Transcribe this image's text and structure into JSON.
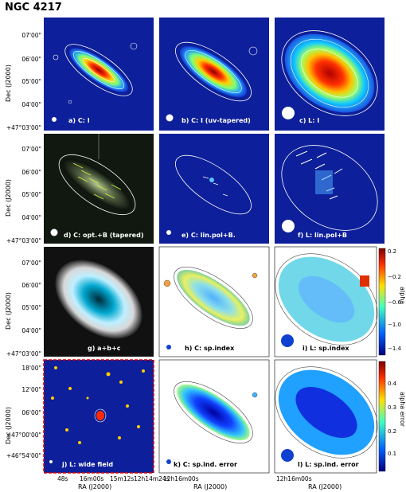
{
  "figure": {
    "title": "NGC 4217",
    "panels": [
      {
        "id": "a",
        "label": "a) C: I"
      },
      {
        "id": "b",
        "label": "b) C: I (uv-tapered)"
      },
      {
        "id": "c",
        "label": "c) L: I"
      },
      {
        "id": "d",
        "label": "d) C: opt.+B (tapered)"
      },
      {
        "id": "e",
        "label": "e) C: lin.pol+B."
      },
      {
        "id": "f",
        "label": "f) L: lin.pol+B"
      },
      {
        "id": "g",
        "label": "g) a+b+c"
      },
      {
        "id": "h",
        "label": "h) C: sp.index"
      },
      {
        "id": "i",
        "label": "i) L: sp.index"
      },
      {
        "id": "j",
        "label": "j) L: wide field"
      },
      {
        "id": "k",
        "label": "k) C: sp.ind. error"
      },
      {
        "id": "l",
        "label": "l) L: sp.ind. error"
      }
    ],
    "ylabel": "Dec (J2000)",
    "xlabel": "RA (J2000)",
    "dec_ticks": [
      "07'00\"",
      "06'00\"",
      "05'00\"",
      "04'00\"",
      "+47°03'00\""
    ],
    "dec_ticks_wide": [
      "18'00\"",
      "12'00\"",
      "06'00\"",
      "+47°00'00\"",
      "+46°54'00\""
    ],
    "ra_ticks_left": [
      "48s",
      "16m00s",
      "15m12s",
      "12h14m24s"
    ],
    "ra_ticks_mid": "12h16m00s",
    "ra_ticks_right": "12h16m00s",
    "colorbar_alpha": {
      "label": "alpha",
      "ticks": [
        "0.2",
        "−0.2",
        "−0.6",
        "−1.0",
        "−1.4"
      ]
    },
    "colorbar_error": {
      "label": "alpha error",
      "ticks": [
        "0.4",
        "0.3",
        "0.2",
        "0.1"
      ]
    }
  }
}
